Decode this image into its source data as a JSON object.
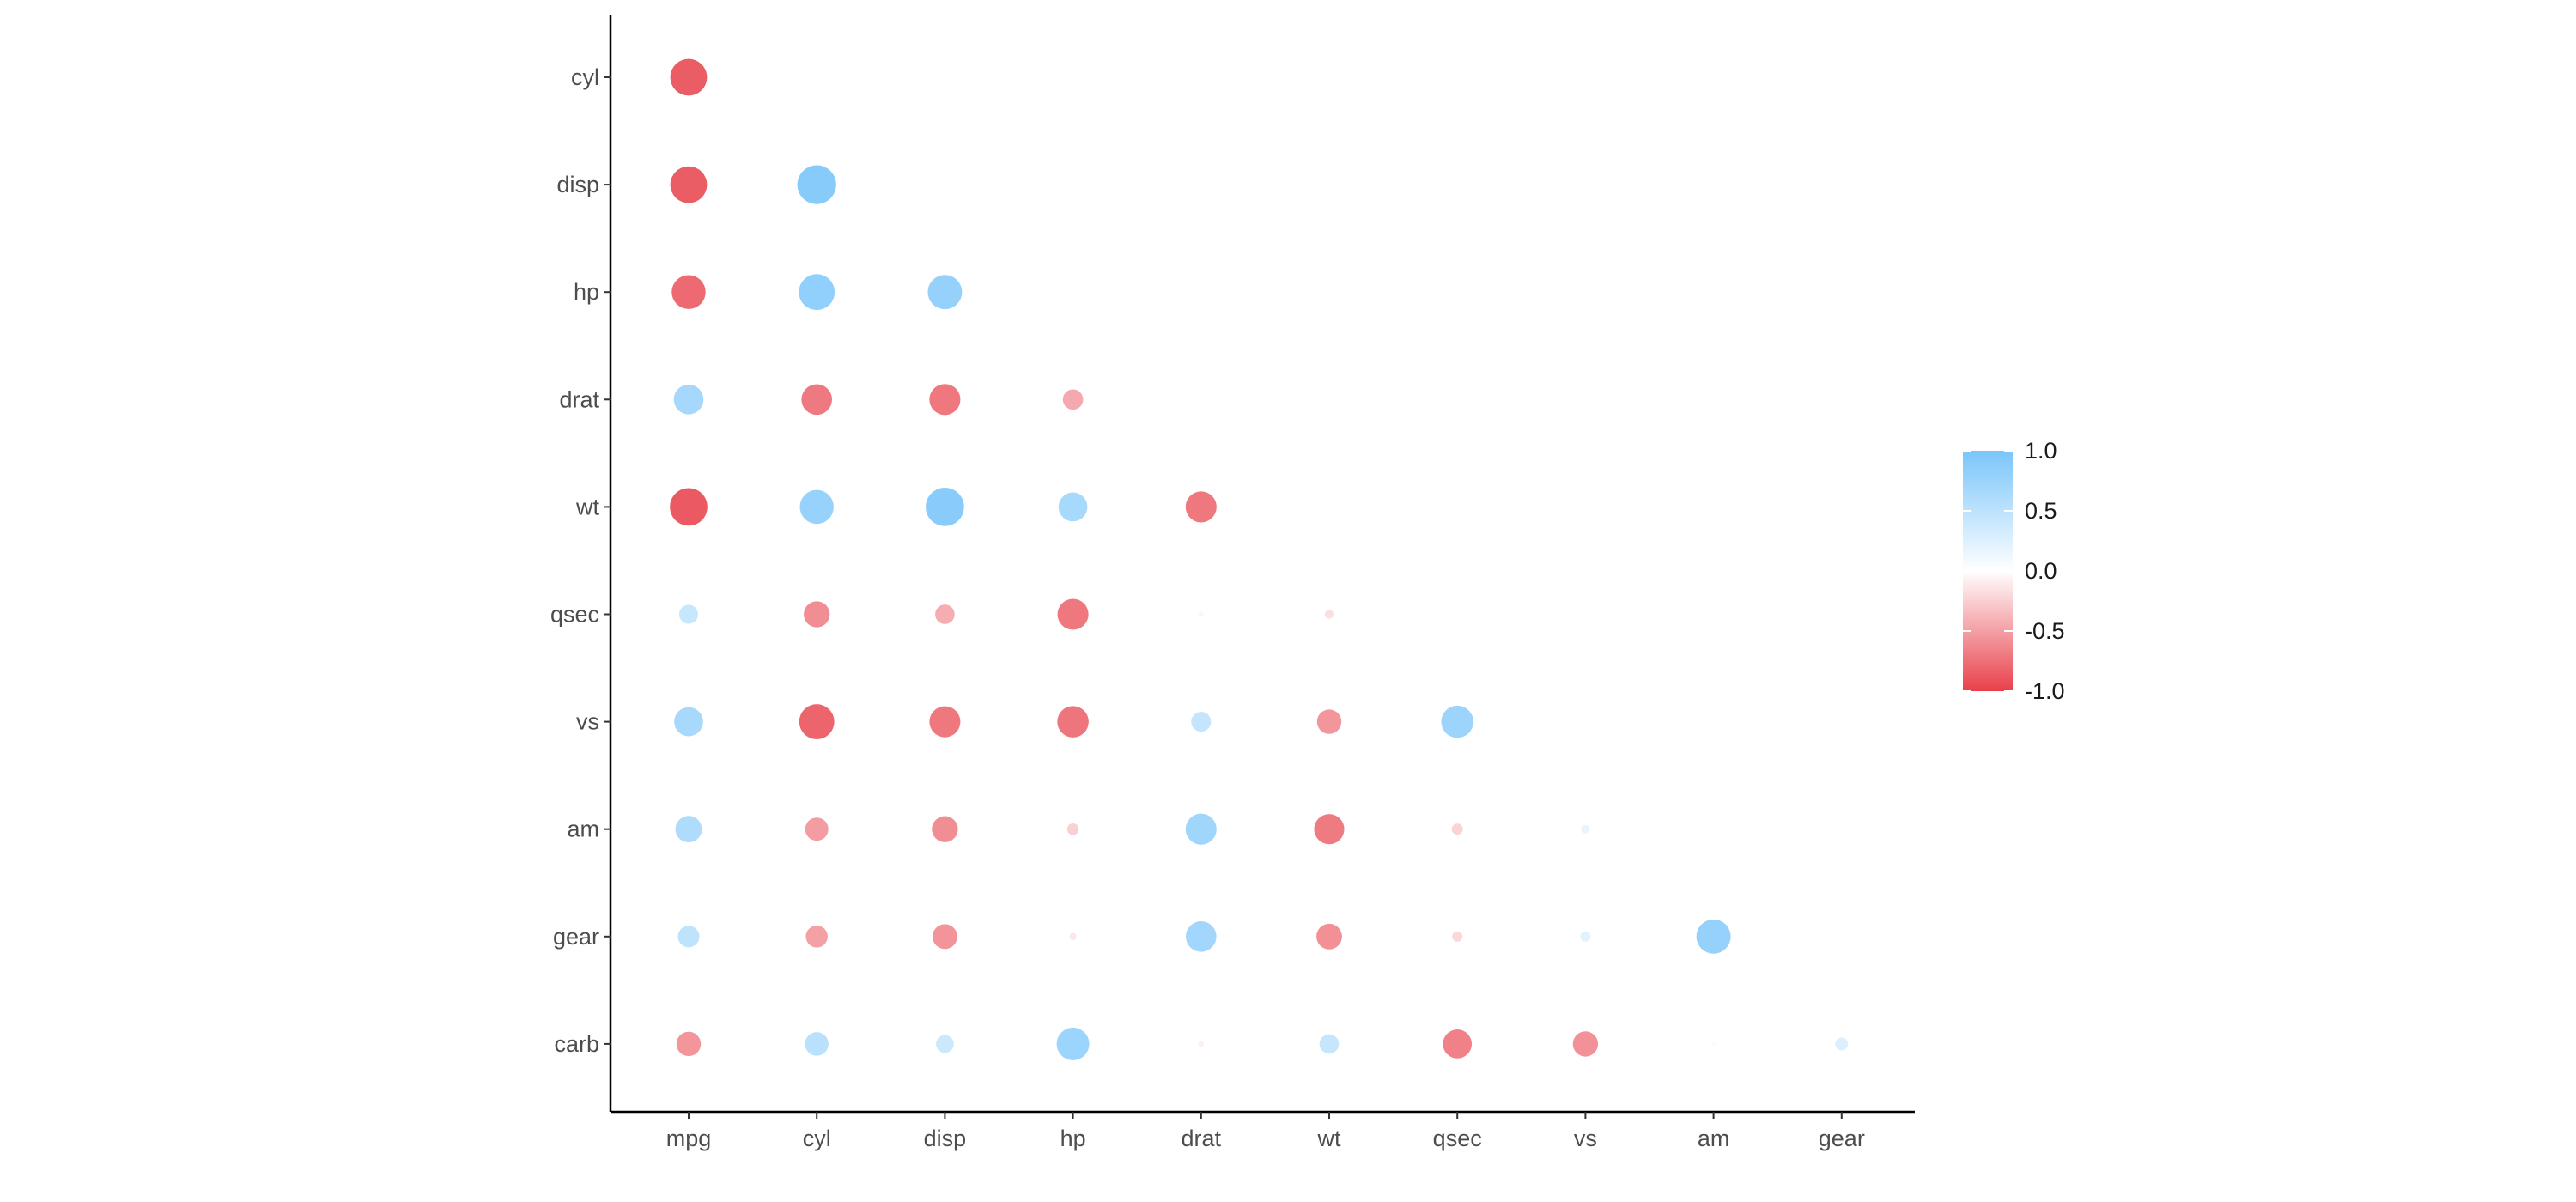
{
  "chart_data": {
    "type": "scatter",
    "subtype": "correlation-matrix-lower-triangle",
    "title": "",
    "xlabel": "",
    "ylabel": "",
    "x_categories": [
      "mpg",
      "cyl",
      "disp",
      "hp",
      "drat",
      "wt",
      "qsec",
      "vs",
      "am",
      "gear"
    ],
    "y_categories": [
      "cyl",
      "disp",
      "hp",
      "drat",
      "wt",
      "qsec",
      "vs",
      "am",
      "gear",
      "carb"
    ],
    "legend": {
      "position": "right",
      "min": -1.0,
      "max": 1.0,
      "ticks": [
        1.0,
        0.5,
        0.0,
        -0.5,
        -1.0
      ],
      "tick_labels": [
        "1.0",
        "0.5",
        "0.0",
        "-0.5",
        "-1.0"
      ],
      "low_color": "#e8404a",
      "mid_color": "#ffffff",
      "high_color": "#7ac5fb"
    },
    "grid": false,
    "values": [
      {
        "x": "mpg",
        "y": "cyl",
        "r": -0.85
      },
      {
        "x": "mpg",
        "y": "disp",
        "r": -0.85
      },
      {
        "x": "mpg",
        "y": "hp",
        "r": -0.78
      },
      {
        "x": "mpg",
        "y": "drat",
        "r": 0.68
      },
      {
        "x": "mpg",
        "y": "wt",
        "r": -0.87
      },
      {
        "x": "mpg",
        "y": "qsec",
        "r": 0.42
      },
      {
        "x": "mpg",
        "y": "vs",
        "r": 0.66
      },
      {
        "x": "mpg",
        "y": "am",
        "r": 0.6
      },
      {
        "x": "mpg",
        "y": "gear",
        "r": 0.48
      },
      {
        "x": "mpg",
        "y": "carb",
        "r": -0.55
      },
      {
        "x": "cyl",
        "y": "disp",
        "r": 0.9
      },
      {
        "x": "cyl",
        "y": "hp",
        "r": 0.83
      },
      {
        "x": "cyl",
        "y": "drat",
        "r": -0.7
      },
      {
        "x": "cyl",
        "y": "wt",
        "r": 0.78
      },
      {
        "x": "cyl",
        "y": "qsec",
        "r": -0.59
      },
      {
        "x": "cyl",
        "y": "vs",
        "r": -0.81
      },
      {
        "x": "cyl",
        "y": "am",
        "r": -0.52
      },
      {
        "x": "cyl",
        "y": "gear",
        "r": -0.49
      },
      {
        "x": "cyl",
        "y": "carb",
        "r": 0.53
      },
      {
        "x": "disp",
        "y": "hp",
        "r": 0.79
      },
      {
        "x": "disp",
        "y": "drat",
        "r": -0.71
      },
      {
        "x": "disp",
        "y": "wt",
        "r": 0.89
      },
      {
        "x": "disp",
        "y": "qsec",
        "r": -0.43
      },
      {
        "x": "disp",
        "y": "vs",
        "r": -0.71
      },
      {
        "x": "disp",
        "y": "am",
        "r": -0.59
      },
      {
        "x": "disp",
        "y": "gear",
        "r": -0.56
      },
      {
        "x": "disp",
        "y": "carb",
        "r": 0.39
      },
      {
        "x": "hp",
        "y": "drat",
        "r": -0.45
      },
      {
        "x": "hp",
        "y": "wt",
        "r": 0.66
      },
      {
        "x": "hp",
        "y": "qsec",
        "r": -0.71
      },
      {
        "x": "hp",
        "y": "vs",
        "r": -0.72
      },
      {
        "x": "hp",
        "y": "am",
        "r": -0.24
      },
      {
        "x": "hp",
        "y": "gear",
        "r": -0.13
      },
      {
        "x": "hp",
        "y": "carb",
        "r": 0.75
      },
      {
        "x": "drat",
        "y": "wt",
        "r": -0.71
      },
      {
        "x": "drat",
        "y": "qsec",
        "r": 0.09
      },
      {
        "x": "drat",
        "y": "vs",
        "r": 0.44
      },
      {
        "x": "drat",
        "y": "am",
        "r": 0.71
      },
      {
        "x": "drat",
        "y": "gear",
        "r": 0.7
      },
      {
        "x": "drat",
        "y": "carb",
        "r": -0.09
      },
      {
        "x": "wt",
        "y": "qsec",
        "r": -0.17
      },
      {
        "x": "wt",
        "y": "vs",
        "r": -0.55
      },
      {
        "x": "wt",
        "y": "am",
        "r": -0.69
      },
      {
        "x": "wt",
        "y": "gear",
        "r": -0.58
      },
      {
        "x": "wt",
        "y": "carb",
        "r": 0.43
      },
      {
        "x": "qsec",
        "y": "vs",
        "r": 0.74
      },
      {
        "x": "qsec",
        "y": "am",
        "r": -0.23
      },
      {
        "x": "qsec",
        "y": "gear",
        "r": -0.21
      },
      {
        "x": "qsec",
        "y": "carb",
        "r": -0.66
      },
      {
        "x": "vs",
        "y": "am",
        "r": 0.17
      },
      {
        "x": "vs",
        "y": "gear",
        "r": 0.21
      },
      {
        "x": "vs",
        "y": "carb",
        "r": -0.57
      },
      {
        "x": "am",
        "y": "gear",
        "r": 0.79
      },
      {
        "x": "am",
        "y": "carb",
        "r": 0.06
      },
      {
        "x": "gear",
        "y": "carb",
        "r": 0.27
      }
    ]
  }
}
